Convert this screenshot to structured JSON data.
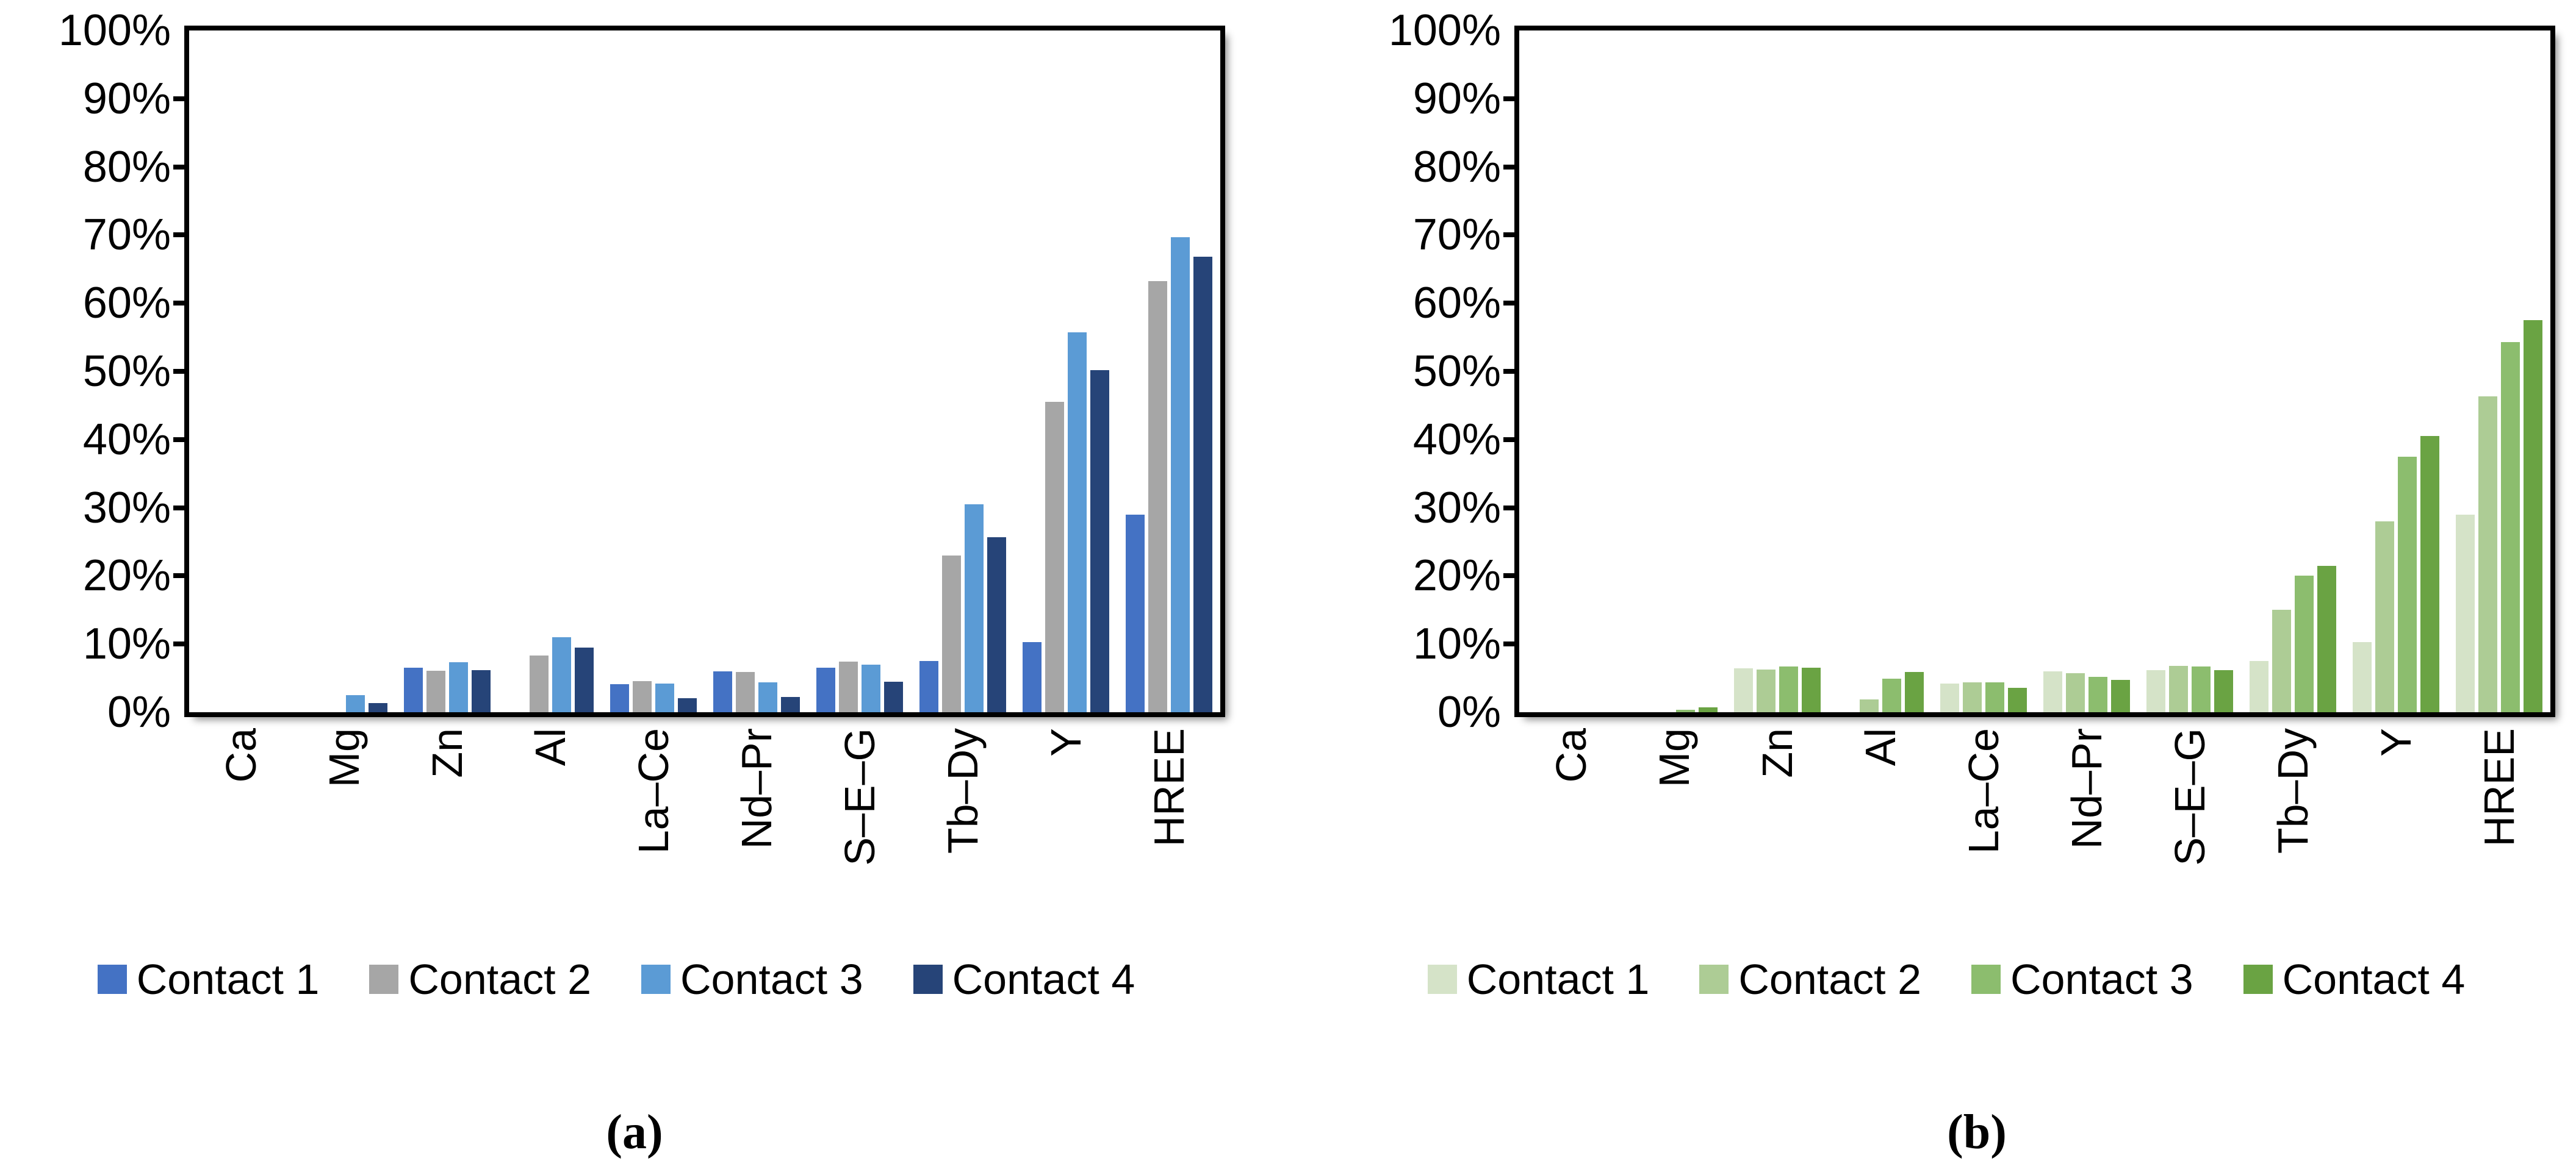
{
  "y_axis": {
    "tick_labels": [
      "100%",
      "90%",
      "80%",
      "70%",
      "60%",
      "50%",
      "40%",
      "30%",
      "20%",
      "10%",
      "0%"
    ],
    "min": 0,
    "max": 100,
    "step": 10
  },
  "chart_data": [
    {
      "type": "bar",
      "title": "",
      "caption": "(a)",
      "xlabel": "",
      "ylabel": "",
      "ylim": [
        0,
        100
      ],
      "grid": false,
      "legend_position": "bottom",
      "categories": [
        "Ca",
        "Mg",
        "Zn",
        "Al",
        "La–Ce",
        "Nd–Pr",
        "S–E–G",
        "Tb–Dy",
        "Y",
        "HREE"
      ],
      "series": [
        {
          "name": "Contact 1",
          "color": "#4472C4",
          "values": [
            0,
            0,
            6.5,
            0,
            4.1,
            6.0,
            6.5,
            7.5,
            10.3,
            29.0
          ]
        },
        {
          "name": "Contact 2",
          "color": "#A6A6A6",
          "values": [
            0,
            0,
            6.1,
            8.3,
            4.6,
            5.9,
            7.4,
            23.0,
            45.5,
            63.2
          ]
        },
        {
          "name": "Contact 3",
          "color": "#5B9BD5",
          "values": [
            0,
            2.5,
            7.3,
            11.0,
            4.2,
            4.4,
            7.0,
            30.5,
            55.7,
            69.7
          ]
        },
        {
          "name": "Contact 4",
          "color": "#264478",
          "values": [
            0,
            1.3,
            6.2,
            9.5,
            2.1,
            2.2,
            4.5,
            25.7,
            50.2,
            66.8
          ]
        }
      ]
    },
    {
      "type": "bar",
      "title": "",
      "caption": "(b)",
      "xlabel": "",
      "ylabel": "",
      "ylim": [
        0,
        100
      ],
      "grid": false,
      "legend_position": "bottom",
      "categories": [
        "Ca",
        "Mg",
        "Zn",
        "Al",
        "La–Ce",
        "Nd–Pr",
        "S–E–G",
        "Tb–Dy",
        "Y",
        "HREE"
      ],
      "series": [
        {
          "name": "Contact 1",
          "color": "#D5E3C8",
          "values": [
            0,
            0,
            6.4,
            0,
            4.2,
            6.0,
            6.2,
            7.5,
            10.3,
            29.0
          ]
        },
        {
          "name": "Contact 2",
          "color": "#ADCC95",
          "values": [
            0,
            0,
            6.3,
            1.9,
            4.4,
            5.7,
            6.8,
            15.0,
            28.0,
            46.3
          ]
        },
        {
          "name": "Contact 3",
          "color": "#8CBD6E",
          "values": [
            0,
            0.4,
            6.7,
            4.9,
            4.4,
            5.2,
            6.7,
            20.0,
            37.5,
            54.3
          ]
        },
        {
          "name": "Contact 4",
          "color": "#6AA343",
          "values": [
            0,
            0.7,
            6.5,
            5.9,
            3.6,
            4.7,
            6.2,
            21.5,
            40.5,
            57.5
          ]
        }
      ]
    }
  ]
}
